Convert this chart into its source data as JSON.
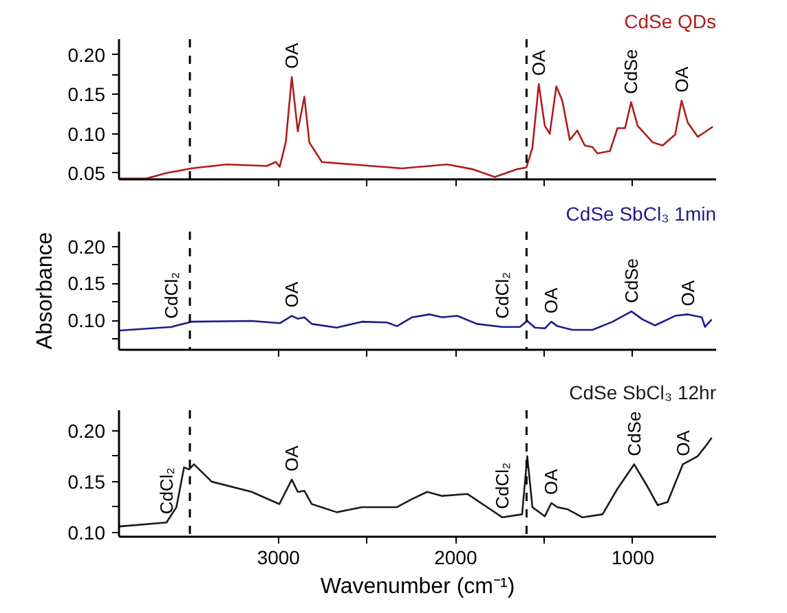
{
  "chart_data": [
    {
      "type": "line",
      "tick_labels": "y",
      "xlim": [
        3900,
        530
      ],
      "ylim": [
        0.042,
        0.22
      ],
      "xticks": [
        {
          "value": 3000,
          "label": null
        },
        {
          "value": 2500,
          "label": null
        },
        {
          "value": 2000,
          "label": null
        },
        {
          "value": 1500,
          "label": null
        },
        {
          "value": 1000,
          "label": null
        }
      ],
      "yticks": [
        {
          "value": 0.05,
          "label": "0.05"
        },
        {
          "value": 0.075,
          "label": null
        },
        {
          "value": 0.1,
          "label": "0.10"
        },
        {
          "value": 0.125,
          "label": null
        },
        {
          "value": 0.15,
          "label": "0.15"
        },
        {
          "value": 0.175,
          "label": null
        },
        {
          "value": 0.2,
          "label": "0.20"
        }
      ],
      "x": [
        3900,
        3746,
        3632,
        3491,
        3293,
        3067,
        3015,
        2993,
        2959,
        2925,
        2891,
        2854,
        2826,
        2755,
        2585,
        2303,
        2048,
        1907,
        1779,
        1652,
        1601,
        1567,
        1531,
        1497,
        1469,
        1432,
        1398,
        1356,
        1314,
        1271,
        1228,
        1200,
        1129,
        1087,
        1044,
        1010,
        973,
        888,
        832,
        761,
        725,
        690,
        634,
        593,
        549
      ],
      "series": [
        {
          "name": "CdSe QDs",
          "color": "#b01c1c",
          "values": [
            0.043,
            0.043,
            0.05,
            0.056,
            0.061,
            0.059,
            0.064,
            0.058,
            0.089,
            0.172,
            0.103,
            0.147,
            0.089,
            0.064,
            0.061,
            0.056,
            0.061,
            0.055,
            0.045,
            0.055,
            0.057,
            0.082,
            0.163,
            0.11,
            0.1,
            0.16,
            0.142,
            0.092,
            0.104,
            0.085,
            0.083,
            0.075,
            0.078,
            0.107,
            0.107,
            0.14,
            0.11,
            0.089,
            0.085,
            0.099,
            0.142,
            0.114,
            0.096,
            0.102,
            0.109
          ]
        }
      ],
      "ref_lines": [
        {
          "axis": "x",
          "value": 3500,
          "color": "#000000",
          "line_style": "dashed"
        },
        {
          "axis": "x",
          "value": 1600,
          "color": "#000000",
          "line_style": "dashed"
        }
      ],
      "annotations": [
        {
          "text": "OA",
          "x": 2925,
          "y": 0.172
        },
        {
          "text": "OA",
          "x": 1531,
          "y": 0.163
        },
        {
          "text": "CdSe",
          "x": 1010,
          "y": 0.14
        },
        {
          "text": "OA",
          "x": 725,
          "y": 0.142
        }
      ]
    },
    {
      "type": "line",
      "tick_labels": "y",
      "ylabel": "Absorbance",
      "xlim": [
        3900,
        530
      ],
      "ylim": [
        0.06,
        0.22
      ],
      "xticks": [
        {
          "value": 3000,
          "label": null
        },
        {
          "value": 2500,
          "label": null
        },
        {
          "value": 2000,
          "label": null
        },
        {
          "value": 1500,
          "label": null
        },
        {
          "value": 1000,
          "label": null
        }
      ],
      "yticks": [
        {
          "value": 0.075,
          "label": null
        },
        {
          "value": 0.1,
          "label": "0.10"
        },
        {
          "value": 0.125,
          "label": null
        },
        {
          "value": 0.15,
          "label": "0.15"
        },
        {
          "value": 0.175,
          "label": null
        },
        {
          "value": 0.2,
          "label": "0.20"
        }
      ],
      "x": [
        3900,
        3604,
        3491,
        3151,
        2993,
        2925,
        2891,
        2854,
        2812,
        2671,
        2529,
        2388,
        2331,
        2246,
        2147,
        2076,
        1992,
        1879,
        1737,
        1638,
        1596,
        1553,
        1497,
        1460,
        1426,
        1342,
        1228,
        1114,
        1008,
        945,
        875,
        761,
        690,
        611,
        593,
        555
      ],
      "series": [
        {
          "name": "CdSe SbCl₃ 1min",
          "color": "#1c1c8c",
          "values": [
            0.086,
            0.091,
            0.098,
            0.099,
            0.096,
            0.106,
            0.102,
            0.104,
            0.095,
            0.09,
            0.098,
            0.097,
            0.092,
            0.104,
            0.108,
            0.104,
            0.106,
            0.095,
            0.091,
            0.091,
            0.099,
            0.09,
            0.089,
            0.098,
            0.092,
            0.087,
            0.087,
            0.098,
            0.112,
            0.101,
            0.093,
            0.106,
            0.108,
            0.104,
            0.091,
            0.101
          ]
        }
      ],
      "ref_lines": [
        {
          "axis": "x",
          "value": 3500,
          "color": "#000000",
          "line_style": "dashed"
        },
        {
          "axis": "x",
          "value": 1600,
          "color": "#000000",
          "line_style": "dashed"
        }
      ],
      "annotations": [
        {
          "text": "CdCl₂",
          "x": 3604,
          "y": 0.091
        },
        {
          "text": "OA",
          "x": 2925,
          "y": 0.106
        },
        {
          "text": "CdCl₂",
          "x": 1737,
          "y": 0.091
        },
        {
          "text": "OA",
          "x": 1460,
          "y": 0.098
        },
        {
          "text": "CdSe",
          "x": 1008,
          "y": 0.112
        },
        {
          "text": "OA",
          "x": 690,
          "y": 0.108
        }
      ]
    },
    {
      "type": "line",
      "xlabel": "Wavenumber (cm⁻¹)",
      "xlim": [
        3900,
        530
      ],
      "ylim": [
        0.096,
        0.22
      ],
      "xticks": [
        3000,
        {
          "value": 2500,
          "label": null
        },
        2000,
        {
          "value": 1500,
          "label": null
        },
        1000
      ],
      "yticks": [
        {
          "value": 0.1,
          "label": "0.10"
        },
        {
          "value": 0.125,
          "label": null
        },
        {
          "value": 0.15,
          "label": "0.15"
        },
        {
          "value": 0.175,
          "label": null
        },
        {
          "value": 0.2,
          "label": "0.20"
        }
      ],
      "x": [
        3900,
        3632,
        3576,
        3533,
        3505,
        3477,
        3377,
        3151,
        2995,
        2925,
        2891,
        2854,
        2812,
        2671,
        2529,
        2331,
        2246,
        2161,
        2076,
        1935,
        1822,
        1737,
        1625,
        1596,
        1567,
        1497,
        1460,
        1426,
        1370,
        1284,
        1171,
        1087,
        993,
        917,
        860,
        804,
        718,
        634,
        593,
        555
      ],
      "series": [
        {
          "name": "CdSe SbCl₃ 12hr",
          "color": "#1a1a1a",
          "values": [
            0.106,
            0.11,
            0.125,
            0.164,
            0.162,
            0.167,
            0.15,
            0.14,
            0.128,
            0.152,
            0.14,
            0.141,
            0.128,
            0.12,
            0.125,
            0.125,
            0.133,
            0.14,
            0.136,
            0.138,
            0.125,
            0.115,
            0.118,
            0.175,
            0.125,
            0.116,
            0.129,
            0.125,
            0.123,
            0.115,
            0.118,
            0.143,
            0.167,
            0.145,
            0.127,
            0.13,
            0.167,
            0.175,
            0.184,
            0.193
          ]
        }
      ],
      "ref_lines": [
        {
          "axis": "x",
          "value": 3500,
          "color": "#000000",
          "line_style": "dashed"
        },
        {
          "axis": "x",
          "value": 1600,
          "color": "#000000",
          "line_style": "dashed"
        }
      ],
      "annotations": [
        {
          "text": "CdCl₂",
          "x": 3632,
          "y": 0.11
        },
        {
          "text": "OA",
          "x": 2925,
          "y": 0.152
        },
        {
          "text": "CdCl₂",
          "x": 1737,
          "y": 0.115
        },
        {
          "text": "OA",
          "x": 1460,
          "y": 0.129
        },
        {
          "text": "CdSe",
          "x": 993,
          "y": 0.167
        },
        {
          "text": "OA",
          "x": 718,
          "y": 0.167
        }
      ]
    }
  ]
}
